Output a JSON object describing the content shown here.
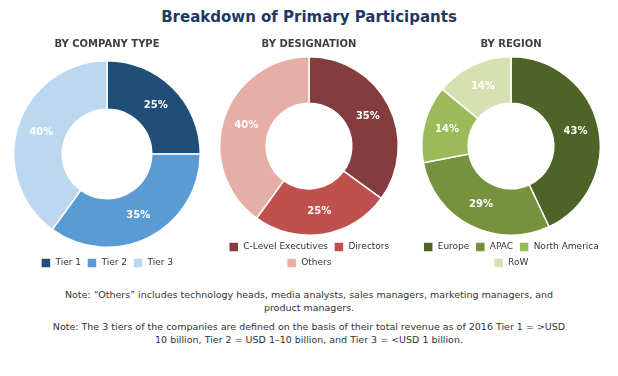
{
  "title": "Breakdown of Primary Participants",
  "chart_data": [
    {
      "type": "pie",
      "title": "BY COMPANY TYPE",
      "categories": [
        "Tier 1",
        "Tier 2",
        "Tier 3"
      ],
      "values": [
        25,
        35,
        40
      ],
      "value_labels": [
        "25%",
        "35%",
        "40%"
      ],
      "colors": [
        "#1F4E79",
        "#5B9BD5",
        "#BDD7EE"
      ],
      "data_labels": true
    },
    {
      "type": "pie",
      "title": "BY DESIGNATION",
      "categories": [
        "C-Level Executives",
        "Directors",
        "Others"
      ],
      "values": [
        35,
        25,
        40
      ],
      "value_labels": [
        "35%",
        "25%",
        "40%"
      ],
      "colors": [
        "#843C3C",
        "#C0504D",
        "#E6AEA4"
      ],
      "data_labels": true
    },
    {
      "type": "pie",
      "title": "BY REGION",
      "categories": [
        "Europe",
        "APAC",
        "North America",
        "RoW"
      ],
      "values": [
        43,
        29,
        14,
        14
      ],
      "value_labels": [
        "43%",
        "29%",
        "14%",
        "14%"
      ],
      "colors": [
        "#4F6228",
        "#76923C",
        "#9BBB59",
        "#D6E0B0"
      ],
      "data_labels": true
    }
  ],
  "annotations": [
    "Note: “Others” includes technology heads, media analysts, sales managers, marketing managers, and\nproduct managers.",
    "Note: The 3 tiers of the companies are defined on the basis of their total revenue as of 2016 Tier 1 = >USD\n10 billion, Tier 2 = USD 1–10 billion, and Tier 3 = <USD 1 billion."
  ]
}
